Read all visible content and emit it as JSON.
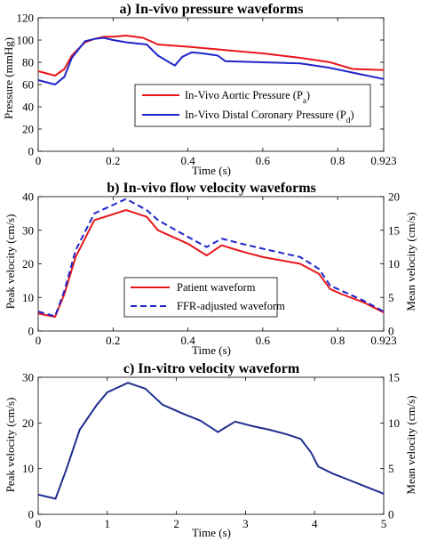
{
  "chart_data": [
    {
      "type": "line",
      "title": "a) In-vivo pressure waveforms",
      "xlabel": "Time (s)",
      "ylabel": "Pressure (mmHg)",
      "xlim": [
        0,
        0.923
      ],
      "ylim": [
        0,
        120
      ],
      "xticks": [
        "0",
        "0.2",
        "0.4",
        "0.6",
        "0.8",
        "0.923"
      ],
      "yticks": [
        "0",
        "20",
        "40",
        "60",
        "80",
        "100",
        "120"
      ],
      "legend_position": "lower-center",
      "series": [
        {
          "name_main": "In-Vivo Aortic Pressure (P",
          "name_sub": "a",
          "name_end": ")",
          "color": "#e8161b",
          "dash": false,
          "points": [
            [
              0,
              72
            ],
            [
              0.045,
              68
            ],
            [
              0.07,
              74
            ],
            [
              0.09,
              86
            ],
            [
              0.125,
              98
            ],
            [
              0.15,
              101
            ],
            [
              0.175,
              103
            ],
            [
              0.2,
              103
            ],
            [
              0.235,
              104
            ],
            [
              0.28,
              102
            ],
            [
              0.32,
              96
            ],
            [
              0.36,
              95
            ],
            [
              0.4,
              94
            ],
            [
              0.5,
              91
            ],
            [
              0.6,
              88
            ],
            [
              0.7,
              84
            ],
            [
              0.78,
              80
            ],
            [
              0.84,
              74
            ],
            [
              0.923,
              73
            ]
          ]
        },
        {
          "name_main": "In-Vivo Distal Coronary Pressure (P",
          "name_sub": "d",
          "name_end": ")",
          "color": "#1f25c9",
          "dash": false,
          "points": [
            [
              0,
              64
            ],
            [
              0.045,
              60
            ],
            [
              0.07,
              67
            ],
            [
              0.09,
              84
            ],
            [
              0.125,
              99
            ],
            [
              0.15,
              101
            ],
            [
              0.175,
              102
            ],
            [
              0.2,
              100
            ],
            [
              0.235,
              98
            ],
            [
              0.29,
              96
            ],
            [
              0.32,
              86
            ],
            [
              0.35,
              80
            ],
            [
              0.365,
              77
            ],
            [
              0.385,
              85
            ],
            [
              0.41,
              89
            ],
            [
              0.44,
              88
            ],
            [
              0.48,
              86
            ],
            [
              0.5,
              81
            ],
            [
              0.6,
              80
            ],
            [
              0.7,
              79
            ],
            [
              0.78,
              75
            ],
            [
              0.85,
              70
            ],
            [
              0.923,
              65
            ]
          ]
        }
      ]
    },
    {
      "type": "line",
      "title": "b) In-vivo flow velocity waveforms",
      "xlabel": "Time (s)",
      "ylabel": "Peak velocity (cm/s)",
      "ylabel_right": "Mean velocity (cm/s)",
      "xlim": [
        0,
        0.923
      ],
      "ylim": [
        0,
        40
      ],
      "ylim_right": [
        0,
        20
      ],
      "xticks": [
        "0",
        "0.2",
        "0.4",
        "0.6",
        "0.8",
        "0.923"
      ],
      "yticks": [
        "0",
        "10",
        "20",
        "30",
        "40"
      ],
      "yticks_right": [
        "0",
        "5",
        "10",
        "15",
        "20"
      ],
      "legend_position": "lower-center",
      "series": [
        {
          "name": "Patient waveform",
          "color": "#e8161b",
          "dash": false,
          "points": [
            [
              0,
              5.2
            ],
            [
              0.045,
              4.2
            ],
            [
              0.07,
              11
            ],
            [
              0.1,
              22
            ],
            [
              0.15,
              33
            ],
            [
              0.235,
              36
            ],
            [
              0.29,
              34
            ],
            [
              0.32,
              30
            ],
            [
              0.4,
              26
            ],
            [
              0.45,
              22.5
            ],
            [
              0.49,
              25.5
            ],
            [
              0.55,
              23.5
            ],
            [
              0.6,
              22
            ],
            [
              0.7,
              20
            ],
            [
              0.75,
              17
            ],
            [
              0.78,
              12.5
            ],
            [
              0.81,
              11
            ],
            [
              0.87,
              8.5
            ],
            [
              0.923,
              5.5
            ]
          ]
        },
        {
          "name": "FFR-adjusted waveform",
          "color": "#1f25c9",
          "dash": true,
          "points": [
            [
              0,
              5.8
            ],
            [
              0.045,
              4.4
            ],
            [
              0.07,
              12
            ],
            [
              0.1,
              24
            ],
            [
              0.15,
              35
            ],
            [
              0.235,
              39.3
            ],
            [
              0.29,
              36
            ],
            [
              0.32,
              33
            ],
            [
              0.4,
              28
            ],
            [
              0.45,
              25
            ],
            [
              0.49,
              27.5
            ],
            [
              0.55,
              25.8
            ],
            [
              0.6,
              24.5
            ],
            [
              0.7,
              22
            ],
            [
              0.75,
              18.5
            ],
            [
              0.78,
              13.5
            ],
            [
              0.81,
              12
            ],
            [
              0.87,
              9
            ],
            [
              0.923,
              5.8
            ]
          ]
        }
      ]
    },
    {
      "type": "line",
      "title": "c) In-vitro velocity waveform",
      "xlabel": "Time (s)",
      "ylabel": "Peak velocity (cm/s)",
      "ylabel_right": "Mean velocity (cm/s)",
      "xlim": [
        0,
        5
      ],
      "ylim": [
        0,
        30
      ],
      "ylim_right": [
        0,
        15
      ],
      "xticks": [
        "0",
        "1",
        "2",
        "3",
        "4",
        "5"
      ],
      "yticks": [
        "0",
        "10",
        "20",
        "30"
      ],
      "yticks_right": [
        "0",
        "5",
        "10",
        "15"
      ],
      "series": [
        {
          "color": "#1f2e8e",
          "dash": false,
          "points": [
            [
              0,
              4.3
            ],
            [
              0.25,
              3.4
            ],
            [
              0.4,
              9.5
            ],
            [
              0.6,
              18.5
            ],
            [
              0.85,
              24
            ],
            [
              1.0,
              26.7
            ],
            [
              1.3,
              28.8
            ],
            [
              1.55,
              27.5
            ],
            [
              1.8,
              24
            ],
            [
              2.1,
              22
            ],
            [
              2.35,
              20.5
            ],
            [
              2.6,
              18
            ],
            [
              2.85,
              20.3
            ],
            [
              3.1,
              19.3
            ],
            [
              3.35,
              18.5
            ],
            [
              3.6,
              17.5
            ],
            [
              3.8,
              16.5
            ],
            [
              3.95,
              13.5
            ],
            [
              4.05,
              10.5
            ],
            [
              4.25,
              9
            ],
            [
              4.5,
              7.5
            ],
            [
              4.75,
              6
            ],
            [
              5.0,
              4.5
            ]
          ]
        }
      ]
    }
  ]
}
